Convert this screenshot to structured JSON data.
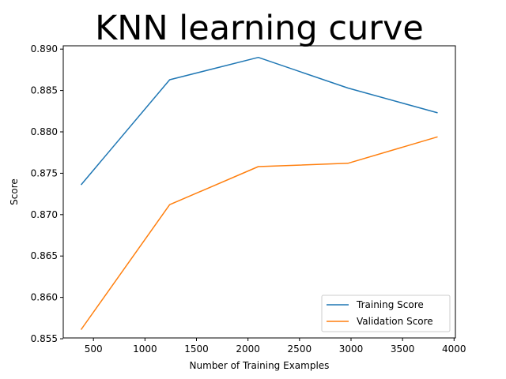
{
  "chart_data": {
    "type": "line",
    "title": "KNN learning curve",
    "xlabel": "Number of Training Examples",
    "ylabel": "Score",
    "x": [
      380,
      1240,
      2100,
      2970,
      3840
    ],
    "series": [
      {
        "name": "Training Score",
        "color": "#1f77b4",
        "values": [
          0.8736,
          0.8863,
          0.889,
          0.8853,
          0.8823
        ]
      },
      {
        "name": "Validation Score",
        "color": "#ff7f0e",
        "values": [
          0.8561,
          0.8712,
          0.8758,
          0.8762,
          0.8794
        ]
      }
    ],
    "xlim": [
      207,
      4013
    ],
    "ylim": [
      0.8551,
      0.8904
    ],
    "xticks": [
      500,
      1000,
      1500,
      2000,
      2500,
      3000,
      3500,
      4000
    ],
    "xtick_labels": [
      "500",
      "1000",
      "1500",
      "2000",
      "2500",
      "3000",
      "3500",
      "4000"
    ],
    "yticks": [
      0.855,
      0.86,
      0.865,
      0.87,
      0.875,
      0.88,
      0.885,
      0.89
    ],
    "ytick_labels": [
      "0.855",
      "0.860",
      "0.865",
      "0.870",
      "0.875",
      "0.880",
      "0.885",
      "0.890"
    ],
    "grid": false,
    "legend_position": "lower-right"
  }
}
